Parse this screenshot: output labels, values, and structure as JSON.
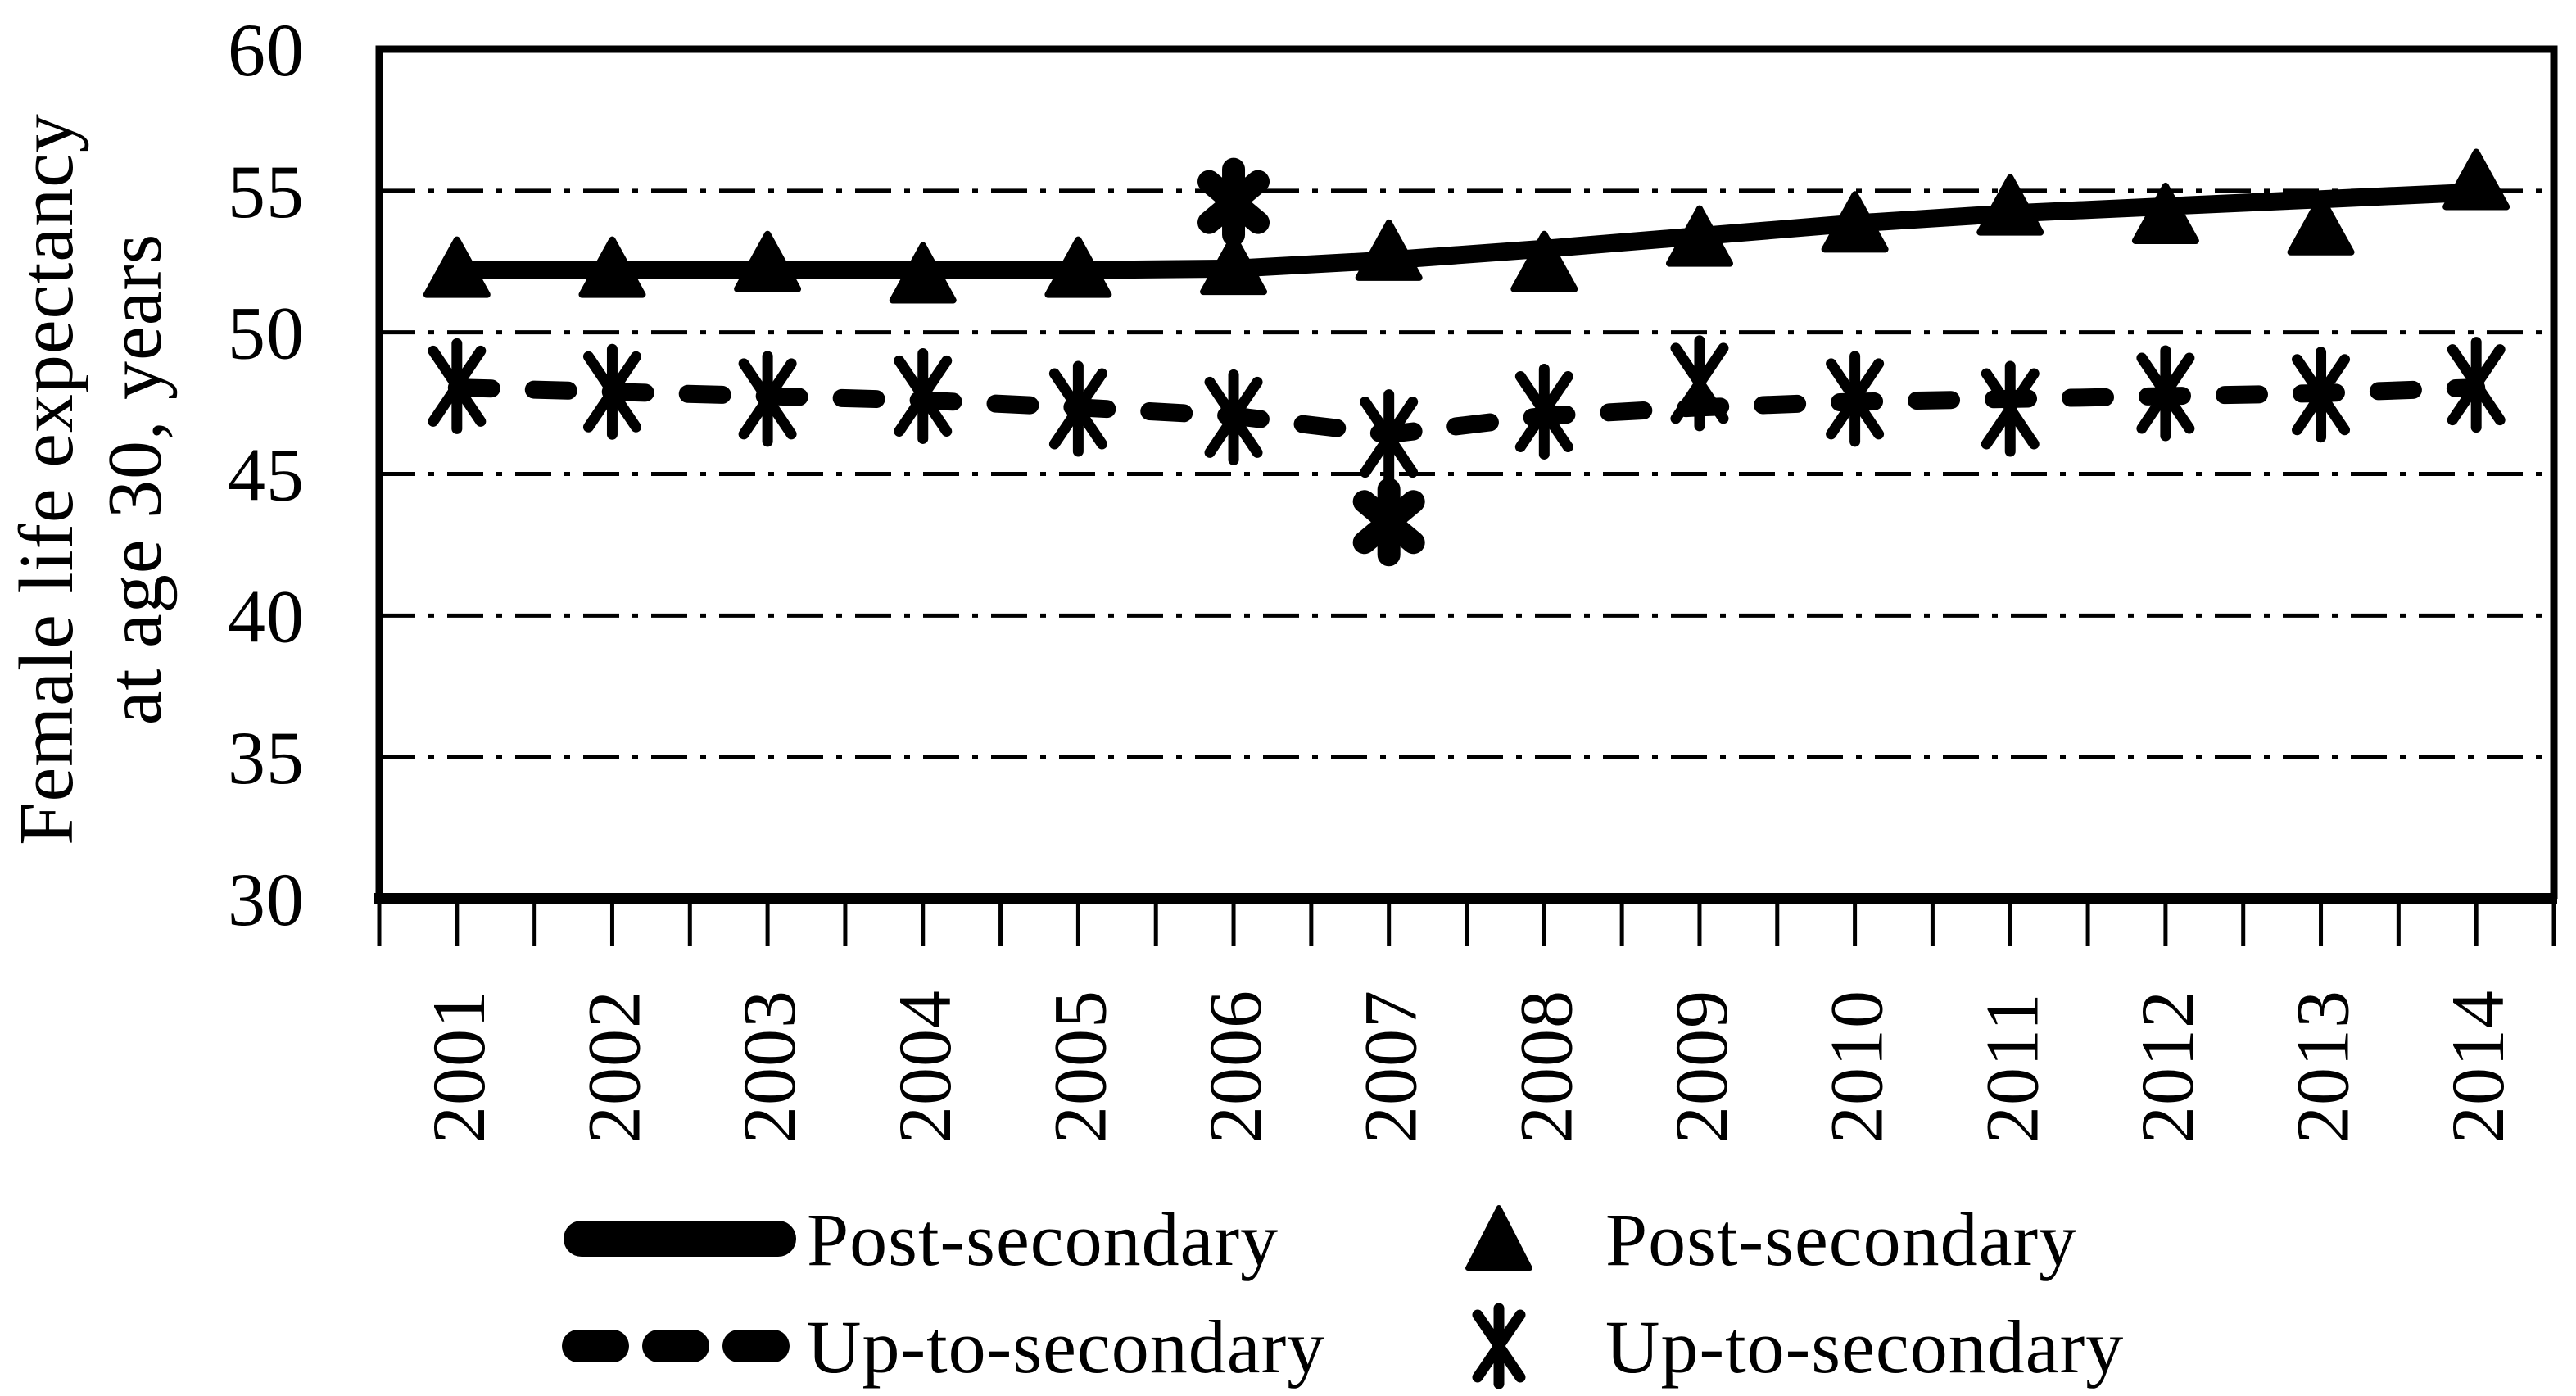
{
  "figure": {
    "background_color": "#ffffff",
    "foreground_color": "#000000"
  },
  "chart_data": {
    "type": "line",
    "title": "",
    "ylabel_line1": "Female life expectancy",
    "ylabel_line2": "at age 30, years",
    "xlabel": "",
    "categories": [
      "2001",
      "2002",
      "2003",
      "2004",
      "2005",
      "2006",
      "2007",
      "2008",
      "2009",
      "2010",
      "2011",
      "2012",
      "2013",
      "2014"
    ],
    "y_ticks": [
      30,
      35,
      40,
      45,
      50,
      55,
      60
    ],
    "ylim": [
      30,
      60
    ],
    "grid": "horizontal-dash-dot",
    "legend_position": "bottom",
    "series": [
      {
        "name": "Post-secondary",
        "style": "solid-line",
        "marker": "triangle",
        "values": [
          52.2,
          52.2,
          52.2,
          52.2,
          52.2,
          52.25,
          52.55,
          52.95,
          53.4,
          53.85,
          54.2,
          54.45,
          54.7,
          54.95
        ],
        "marker_values": [
          52.2,
          52.2,
          52.4,
          52.0,
          52.2,
          52.3,
          52.8,
          52.4,
          53.3,
          53.8,
          54.4,
          54.1,
          53.7,
          55.3
        ]
      },
      {
        "name": "Up-to-secondary",
        "style": "dashed-line",
        "marker": "asterisk",
        "values": [
          48.05,
          47.9,
          47.75,
          47.6,
          47.35,
          47.05,
          46.4,
          47.05,
          47.35,
          47.55,
          47.65,
          47.75,
          47.85,
          48.05
        ],
        "marker_values": [
          48.1,
          47.9,
          47.65,
          47.75,
          47.3,
          47.0,
          46.3,
          47.2,
          48.2,
          47.65,
          47.3,
          47.85,
          47.8,
          48.15
        ]
      }
    ],
    "annotations": [
      {
        "category": "2006",
        "value": 54.6,
        "symbol": "*"
      },
      {
        "category": "2007",
        "value": 43.3,
        "symbol": "*"
      }
    ],
    "legend": {
      "items": [
        {
          "swatch": "solid-line",
          "label": "Post-secondary"
        },
        {
          "swatch": "triangle-marker",
          "label": "Post-secondary"
        },
        {
          "swatch": "dashed-line",
          "label": "Up-to-secondary"
        },
        {
          "swatch": "asterisk-marker",
          "label": "Up-to-secondary"
        }
      ]
    }
  }
}
